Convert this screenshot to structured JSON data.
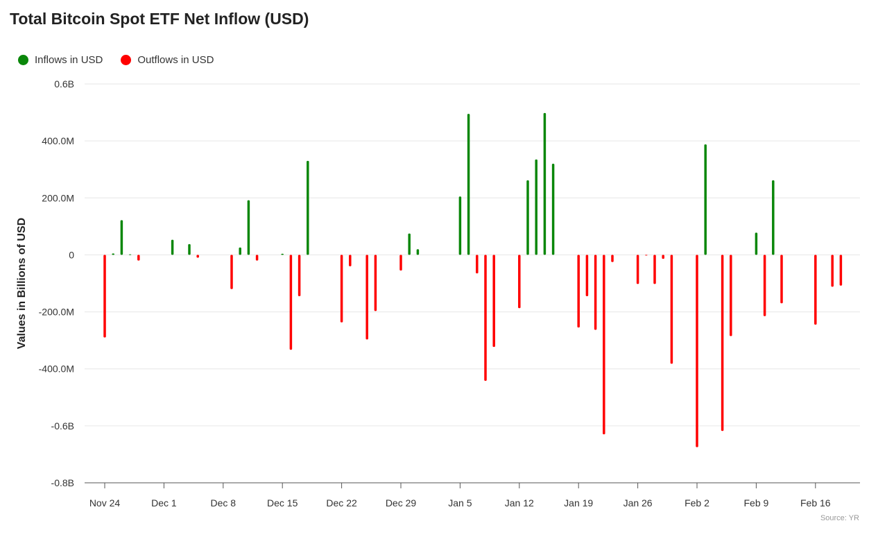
{
  "chart_data": {
    "type": "bar",
    "title": "Total Bitcoin Spot ETF Net Inflow (USD)",
    "ylabel": "Values in Billions of USD",
    "xlabel": "",
    "ylim": [
      -0.8,
      0.6
    ],
    "y_ticks": [
      {
        "value": 0.6,
        "label": "0.6B"
      },
      {
        "value": 0.4,
        "label": "400.0M"
      },
      {
        "value": 0.2,
        "label": "200.0M"
      },
      {
        "value": 0,
        "label": "0"
      },
      {
        "value": -0.2,
        "label": "-200.0M"
      },
      {
        "value": -0.4,
        "label": "-400.0M"
      },
      {
        "value": -0.6,
        "label": "-0.6B"
      },
      {
        "value": -0.8,
        "label": "-0.8B"
      }
    ],
    "x_range": [
      "2024-11-24",
      "2025-02-21"
    ],
    "x_ticks": [
      {
        "date": "2024-11-24",
        "label": "Nov 24"
      },
      {
        "date": "2024-12-01",
        "label": "Dec 1"
      },
      {
        "date": "2024-12-08",
        "label": "Dec 8"
      },
      {
        "date": "2024-12-15",
        "label": "Dec 15"
      },
      {
        "date": "2024-12-22",
        "label": "Dec 22"
      },
      {
        "date": "2024-12-29",
        "label": "Dec 29"
      },
      {
        "date": "2025-01-05",
        "label": "Jan 5"
      },
      {
        "date": "2025-01-12",
        "label": "Jan 12"
      },
      {
        "date": "2025-01-19",
        "label": "Jan 19"
      },
      {
        "date": "2025-01-26",
        "label": "Jan 26"
      },
      {
        "date": "2025-02-02",
        "label": "Feb 2"
      },
      {
        "date": "2025-02-09",
        "label": "Feb 9"
      },
      {
        "date": "2025-02-16",
        "label": "Feb 16"
      }
    ],
    "series": [
      {
        "name": "Inflows in USD",
        "color": "#0a870a"
      },
      {
        "name": "Outflows in USD",
        "color": "#ff0000"
      }
    ],
    "points": [
      {
        "date": "2024-11-24",
        "value": -0.29
      },
      {
        "date": "2024-11-25",
        "value": 0.005
      },
      {
        "date": "2024-11-26",
        "value": 0.122
      },
      {
        "date": "2024-11-27",
        "value": 0.002
      },
      {
        "date": "2024-11-28",
        "value": -0.02
      },
      {
        "date": "2024-12-02",
        "value": 0.053
      },
      {
        "date": "2024-12-04",
        "value": 0.038
      },
      {
        "date": "2024-12-05",
        "value": -0.01
      },
      {
        "date": "2024-12-09",
        "value": -0.12
      },
      {
        "date": "2024-12-10",
        "value": 0.026
      },
      {
        "date": "2024-12-11",
        "value": 0.192
      },
      {
        "date": "2024-12-12",
        "value": -0.02
      },
      {
        "date": "2024-12-15",
        "value": 0.004
      },
      {
        "date": "2024-12-16",
        "value": -0.333
      },
      {
        "date": "2024-12-17",
        "value": -0.145
      },
      {
        "date": "2024-12-18",
        "value": 0.33
      },
      {
        "date": "2024-12-22",
        "value": -0.237
      },
      {
        "date": "2024-12-23",
        "value": -0.04
      },
      {
        "date": "2024-12-25",
        "value": -0.297
      },
      {
        "date": "2024-12-26",
        "value": -0.197
      },
      {
        "date": "2024-12-29",
        "value": -0.055
      },
      {
        "date": "2024-12-30",
        "value": 0.075
      },
      {
        "date": "2024-12-31",
        "value": 0.02
      },
      {
        "date": "2025-01-05",
        "value": 0.205
      },
      {
        "date": "2025-01-06",
        "value": 0.495
      },
      {
        "date": "2025-01-07",
        "value": -0.065
      },
      {
        "date": "2025-01-08",
        "value": -0.442
      },
      {
        "date": "2025-01-09",
        "value": -0.323
      },
      {
        "date": "2025-01-12",
        "value": -0.187
      },
      {
        "date": "2025-01-13",
        "value": 0.262
      },
      {
        "date": "2025-01-14",
        "value": 0.335
      },
      {
        "date": "2025-01-15",
        "value": 0.498
      },
      {
        "date": "2025-01-16",
        "value": 0.32
      },
      {
        "date": "2025-01-19",
        "value": -0.255
      },
      {
        "date": "2025-01-20",
        "value": -0.145
      },
      {
        "date": "2025-01-21",
        "value": -0.263
      },
      {
        "date": "2025-01-22",
        "value": -0.63
      },
      {
        "date": "2025-01-23",
        "value": -0.025
      },
      {
        "date": "2025-01-26",
        "value": -0.102
      },
      {
        "date": "2025-01-27",
        "value": -0.002
      },
      {
        "date": "2025-01-28",
        "value": -0.102
      },
      {
        "date": "2025-01-29",
        "value": -0.014
      },
      {
        "date": "2025-01-30",
        "value": -0.382
      },
      {
        "date": "2025-02-02",
        "value": -0.675
      },
      {
        "date": "2025-02-03",
        "value": 0.388
      },
      {
        "date": "2025-02-05",
        "value": -0.618
      },
      {
        "date": "2025-02-06",
        "value": -0.285
      },
      {
        "date": "2025-02-09",
        "value": 0.078
      },
      {
        "date": "2025-02-10",
        "value": -0.215
      },
      {
        "date": "2025-02-11",
        "value": 0.262
      },
      {
        "date": "2025-02-12",
        "value": -0.17
      },
      {
        "date": "2025-02-16",
        "value": -0.245
      },
      {
        "date": "2025-02-18",
        "value": -0.112
      },
      {
        "date": "2025-02-19",
        "value": -0.108
      }
    ],
    "grid": true,
    "legend_position": "top-left",
    "source_note": "Source: YR"
  }
}
